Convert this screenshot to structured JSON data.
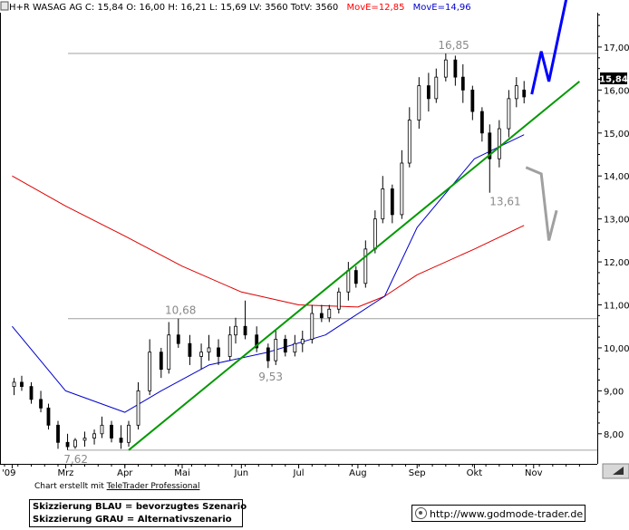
{
  "header": {
    "icon": "chart-icon",
    "text": "H+R WASAG AG C: 15,84 O: 16,00 H: 16,21 L: 15,69 LV: 3560 TotV: 3560",
    "ma1_label": "MovE=12,85",
    "ma2_label": "MovE=14,96",
    "ma1_color": "#ff0000",
    "ma2_color": "#0000cc"
  },
  "credit": {
    "prefix": "Chart erstellt mit ",
    "link": "TeleTrader Professional"
  },
  "legend": {
    "line1": "Skizzierung BLAU = bevorzugtes Szenario",
    "line2": "Skizzierung GRAU = Alternativszenario"
  },
  "url": "http://www.godmode-trader.de",
  "price_badge": "15,84",
  "chart_data": {
    "type": "candlestick",
    "title": "H+R WASAG AG",
    "ylim": [
      7.3,
      17.8
    ],
    "y_ticks": [
      "8,00",
      "9,00",
      "10,00",
      "11,00",
      "12,00",
      "13,00",
      "14,00",
      "15,00",
      "16,00",
      "17,00"
    ],
    "x_labels": [
      "'09",
      "Mrz",
      "Apr",
      "Mai",
      "Jun",
      "Jul",
      "Aug",
      "Sep",
      "Okt",
      "Nov"
    ],
    "x_months": [
      "2009-02",
      "2009-03",
      "2009-04",
      "2009-05",
      "2009-06",
      "2009-07",
      "2009-08",
      "2009-09",
      "2009-10",
      "2009-11"
    ],
    "colors": {
      "up": "#ffffff",
      "down": "#000000",
      "ma_long": "#dd0000",
      "ma_short": "#0000cc",
      "trendline": "#009900",
      "scenario_blue": "#0000ff",
      "scenario_grey": "#a0a0a0",
      "reference_lines": "#a0a0a0"
    },
    "candles": [
      {
        "date": "2009-02-02",
        "o": 9.1,
        "h": 9.3,
        "l": 8.9,
        "c": 9.2
      },
      {
        "date": "2009-02-06",
        "o": 9.2,
        "h": 9.35,
        "l": 9.0,
        "c": 9.1
      },
      {
        "date": "2009-02-11",
        "o": 9.1,
        "h": 9.2,
        "l": 8.7,
        "c": 8.8
      },
      {
        "date": "2009-02-16",
        "o": 8.8,
        "h": 9.0,
        "l": 8.5,
        "c": 8.6
      },
      {
        "date": "2009-02-20",
        "o": 8.6,
        "h": 8.7,
        "l": 8.1,
        "c": 8.2
      },
      {
        "date": "2009-02-25",
        "o": 8.2,
        "h": 8.3,
        "l": 7.65,
        "c": 7.8
      },
      {
        "date": "2009-03-02",
        "o": 7.8,
        "h": 8.0,
        "l": 7.62,
        "c": 7.7
      },
      {
        "date": "2009-03-06",
        "o": 7.7,
        "h": 7.9,
        "l": 7.65,
        "c": 7.85
      },
      {
        "date": "2009-03-11",
        "o": 7.85,
        "h": 8.05,
        "l": 7.7,
        "c": 7.9
      },
      {
        "date": "2009-03-16",
        "o": 7.9,
        "h": 8.1,
        "l": 7.75,
        "c": 8.0
      },
      {
        "date": "2009-03-20",
        "o": 8.0,
        "h": 8.4,
        "l": 7.9,
        "c": 8.2
      },
      {
        "date": "2009-03-25",
        "o": 8.2,
        "h": 8.3,
        "l": 7.8,
        "c": 7.9
      },
      {
        "date": "2009-03-30",
        "o": 7.9,
        "h": 8.2,
        "l": 7.65,
        "c": 7.8
      },
      {
        "date": "2009-04-03",
        "o": 7.8,
        "h": 8.3,
        "l": 7.7,
        "c": 8.2
      },
      {
        "date": "2009-04-08",
        "o": 8.2,
        "h": 9.2,
        "l": 8.1,
        "c": 9.0
      },
      {
        "date": "2009-04-14",
        "o": 9.0,
        "h": 10.2,
        "l": 8.9,
        "c": 9.9
      },
      {
        "date": "2009-04-20",
        "o": 9.9,
        "h": 10.0,
        "l": 9.3,
        "c": 9.5
      },
      {
        "date": "2009-04-24",
        "o": 9.5,
        "h": 10.6,
        "l": 9.4,
        "c": 10.3
      },
      {
        "date": "2009-04-29",
        "o": 10.3,
        "h": 10.68,
        "l": 10.0,
        "c": 10.1
      },
      {
        "date": "2009-05-05",
        "o": 10.1,
        "h": 10.3,
        "l": 9.6,
        "c": 9.8
      },
      {
        "date": "2009-05-11",
        "o": 9.8,
        "h": 10.1,
        "l": 9.5,
        "c": 9.9
      },
      {
        "date": "2009-05-15",
        "o": 9.9,
        "h": 10.3,
        "l": 9.7,
        "c": 10.0
      },
      {
        "date": "2009-05-20",
        "o": 10.0,
        "h": 10.2,
        "l": 9.6,
        "c": 9.8
      },
      {
        "date": "2009-05-26",
        "o": 9.8,
        "h": 10.5,
        "l": 9.7,
        "c": 10.3
      },
      {
        "date": "2009-05-29",
        "o": 10.3,
        "h": 10.7,
        "l": 10.1,
        "c": 10.5
      },
      {
        "date": "2009-06-03",
        "o": 10.5,
        "h": 11.1,
        "l": 10.2,
        "c": 10.3
      },
      {
        "date": "2009-06-09",
        "o": 10.3,
        "h": 10.5,
        "l": 9.9,
        "c": 10.0
      },
      {
        "date": "2009-06-15",
        "o": 10.0,
        "h": 10.1,
        "l": 9.53,
        "c": 9.7
      },
      {
        "date": "2009-06-19",
        "o": 9.7,
        "h": 10.4,
        "l": 9.6,
        "c": 10.2
      },
      {
        "date": "2009-06-24",
        "o": 10.2,
        "h": 10.3,
        "l": 9.8,
        "c": 9.9
      },
      {
        "date": "2009-06-29",
        "o": 9.9,
        "h": 10.3,
        "l": 9.8,
        "c": 10.1
      },
      {
        "date": "2009-07-03",
        "o": 10.1,
        "h": 10.4,
        "l": 9.9,
        "c": 10.2
      },
      {
        "date": "2009-07-08",
        "o": 10.2,
        "h": 11.0,
        "l": 10.1,
        "c": 10.8
      },
      {
        "date": "2009-07-13",
        "o": 10.8,
        "h": 11.0,
        "l": 10.6,
        "c": 10.7
      },
      {
        "date": "2009-07-17",
        "o": 10.7,
        "h": 11.0,
        "l": 10.6,
        "c": 10.9
      },
      {
        "date": "2009-07-22",
        "o": 10.9,
        "h": 11.4,
        "l": 10.8,
        "c": 11.3
      },
      {
        "date": "2009-07-27",
        "o": 11.3,
        "h": 12.0,
        "l": 11.1,
        "c": 11.8
      },
      {
        "date": "2009-07-31",
        "o": 11.8,
        "h": 11.9,
        "l": 11.4,
        "c": 11.5
      },
      {
        "date": "2009-08-05",
        "o": 11.5,
        "h": 12.5,
        "l": 11.4,
        "c": 12.3
      },
      {
        "date": "2009-08-10",
        "o": 12.3,
        "h": 13.2,
        "l": 12.2,
        "c": 13.0
      },
      {
        "date": "2009-08-14",
        "o": 13.0,
        "h": 14.0,
        "l": 12.9,
        "c": 13.7
      },
      {
        "date": "2009-08-19",
        "o": 13.7,
        "h": 13.8,
        "l": 12.9,
        "c": 13.1
      },
      {
        "date": "2009-08-24",
        "o": 13.1,
        "h": 14.6,
        "l": 13.0,
        "c": 14.3
      },
      {
        "date": "2009-08-28",
        "o": 14.3,
        "h": 15.6,
        "l": 14.2,
        "c": 15.3
      },
      {
        "date": "2009-09-02",
        "o": 15.3,
        "h": 16.3,
        "l": 15.1,
        "c": 16.1
      },
      {
        "date": "2009-09-07",
        "o": 16.1,
        "h": 16.4,
        "l": 15.5,
        "c": 15.8
      },
      {
        "date": "2009-09-11",
        "o": 15.8,
        "h": 16.5,
        "l": 15.7,
        "c": 16.3
      },
      {
        "date": "2009-09-16",
        "o": 16.3,
        "h": 16.85,
        "l": 16.2,
        "c": 16.7
      },
      {
        "date": "2009-09-21",
        "o": 16.7,
        "h": 16.8,
        "l": 16.1,
        "c": 16.3
      },
      {
        "date": "2009-09-25",
        "o": 16.3,
        "h": 16.6,
        "l": 15.7,
        "c": 16.0
      },
      {
        "date": "2009-09-30",
        "o": 16.0,
        "h": 16.1,
        "l": 15.3,
        "c": 15.5
      },
      {
        "date": "2009-10-05",
        "o": 15.5,
        "h": 15.6,
        "l": 14.8,
        "c": 15.0
      },
      {
        "date": "2009-10-09",
        "o": 15.0,
        "h": 15.2,
        "l": 13.61,
        "c": 14.4
      },
      {
        "date": "2009-10-14",
        "o": 14.4,
        "h": 15.3,
        "l": 14.2,
        "c": 15.1
      },
      {
        "date": "2009-10-19",
        "o": 15.1,
        "h": 16.0,
        "l": 14.9,
        "c": 15.8
      },
      {
        "date": "2009-10-23",
        "o": 15.8,
        "h": 16.3,
        "l": 15.6,
        "c": 16.1
      },
      {
        "date": "2009-10-27",
        "o": 16.0,
        "h": 16.21,
        "l": 15.69,
        "c": 15.84
      }
    ],
    "ma_long": {
      "name": "MovE=12,85",
      "points": [
        {
          "date": "2009-02-01",
          "v": 14.0
        },
        {
          "date": "2009-03-01",
          "v": 13.3
        },
        {
          "date": "2009-04-01",
          "v": 12.6
        },
        {
          "date": "2009-05-01",
          "v": 11.9
        },
        {
          "date": "2009-06-01",
          "v": 11.3
        },
        {
          "date": "2009-07-01",
          "v": 11.0
        },
        {
          "date": "2009-08-01",
          "v": 10.95
        },
        {
          "date": "2009-08-15",
          "v": 11.2
        },
        {
          "date": "2009-09-01",
          "v": 11.7
        },
        {
          "date": "2009-10-01",
          "v": 12.3
        },
        {
          "date": "2009-10-27",
          "v": 12.85
        }
      ]
    },
    "ma_short": {
      "name": "MovE=14,96",
      "points": [
        {
          "date": "2009-02-01",
          "v": 10.5
        },
        {
          "date": "2009-03-01",
          "v": 9.0
        },
        {
          "date": "2009-04-01",
          "v": 8.5
        },
        {
          "date": "2009-04-20",
          "v": 9.0
        },
        {
          "date": "2009-05-15",
          "v": 9.6
        },
        {
          "date": "2009-06-15",
          "v": 9.9
        },
        {
          "date": "2009-07-15",
          "v": 10.3
        },
        {
          "date": "2009-08-15",
          "v": 11.2
        },
        {
          "date": "2009-09-01",
          "v": 12.8
        },
        {
          "date": "2009-10-01",
          "v": 14.4
        },
        {
          "date": "2009-10-27",
          "v": 14.96
        }
      ]
    },
    "trendline": [
      {
        "date": "2009-04-03",
        "v": 7.62
      },
      {
        "date": "2009-11-25",
        "v": 16.2
      }
    ],
    "horizontal_lines": [
      7.62,
      10.68,
      16.85
    ],
    "annotations": [
      {
        "text": "16,85",
        "date": "2009-09-12",
        "v": 16.85
      },
      {
        "text": "10,68",
        "date": "2009-04-22",
        "v": 10.68
      },
      {
        "text": "9,53",
        "date": "2009-06-10",
        "v": 9.53
      },
      {
        "text": "7,62",
        "date": "2009-02-28",
        "v": 7.62
      },
      {
        "text": "13,61",
        "date": "2009-10-09",
        "v": 13.61
      }
    ],
    "scenario_blue": [
      {
        "date": "2009-10-31",
        "v": 15.9
      },
      {
        "date": "2009-11-05",
        "v": 16.9
      },
      {
        "date": "2009-11-09",
        "v": 16.2
      },
      {
        "date": "2009-11-18",
        "v": 18.1
      }
    ],
    "scenario_grey": [
      {
        "date": "2009-10-28",
        "v": 14.2
      },
      {
        "date": "2009-11-05",
        "v": 14.05
      },
      {
        "date": "2009-11-09",
        "v": 12.5
      },
      {
        "date": "2009-11-13",
        "v": 13.2
      }
    ],
    "last_price": 15.84
  }
}
